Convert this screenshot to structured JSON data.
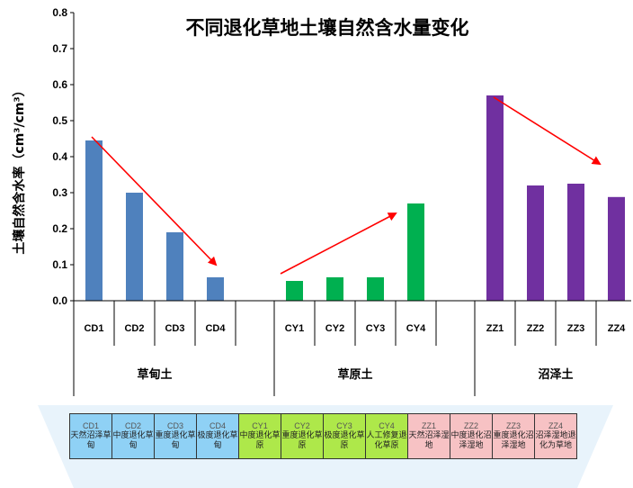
{
  "chart_data": {
    "type": "bar",
    "title": "不同退化草地土壤自然含水量变化",
    "ylabel": "土壤自然含水率（cm³/cm³）",
    "ylim": [
      0,
      0.8
    ],
    "yticks": [
      "0.0",
      "0.1",
      "0.2",
      "0.3",
      "0.4",
      "0.5",
      "0.6",
      "0.7",
      "0.8"
    ],
    "grid": false,
    "groups": [
      {
        "name": "草甸土",
        "color": "#4f81bd",
        "categories": [
          "CD1",
          "CD2",
          "CD3",
          "CD4"
        ],
        "values": [
          0.445,
          0.3,
          0.19,
          0.065
        ]
      },
      {
        "name": "草原土",
        "color": "#00b050",
        "categories": [
          "CY1",
          "CY2",
          "CY3",
          "CY4"
        ],
        "values": [
          0.055,
          0.065,
          0.065,
          0.27
        ]
      },
      {
        "name": "沼泽土",
        "color": "#7030a0",
        "categories": [
          "ZZ1",
          "ZZ2",
          "ZZ3",
          "ZZ4"
        ],
        "values": [
          0.57,
          0.32,
          0.325,
          0.288
        ]
      }
    ],
    "trend_color": "#ff0000"
  },
  "legend": [
    {
      "code": "CD1",
      "desc": "天然沼泽草甸",
      "group": "cd"
    },
    {
      "code": "CD2",
      "desc": "中度退化草甸",
      "group": "cd"
    },
    {
      "code": "CD3",
      "desc": "重度退化草甸",
      "group": "cd"
    },
    {
      "code": "CD4",
      "desc": "极度退化草甸",
      "group": "cd"
    },
    {
      "code": "CY1",
      "desc": "中度退化草原",
      "group": "cy"
    },
    {
      "code": "CY2",
      "desc": "重度退化草原",
      "group": "cy"
    },
    {
      "code": "CY3",
      "desc": "极度退化草原",
      "group": "cy"
    },
    {
      "code": "CY4",
      "desc": "人工修复退化草原",
      "group": "cy"
    },
    {
      "code": "ZZ1",
      "desc": "天然沼泽湿地",
      "group": "zz"
    },
    {
      "code": "ZZ2",
      "desc": "中度退化沼泽湿地",
      "group": "zz"
    },
    {
      "code": "ZZ3",
      "desc": "重度退化沼泽湿地",
      "group": "zz"
    },
    {
      "code": "ZZ4",
      "desc": "沼泽湿地退化为草地",
      "group": "zz"
    }
  ]
}
